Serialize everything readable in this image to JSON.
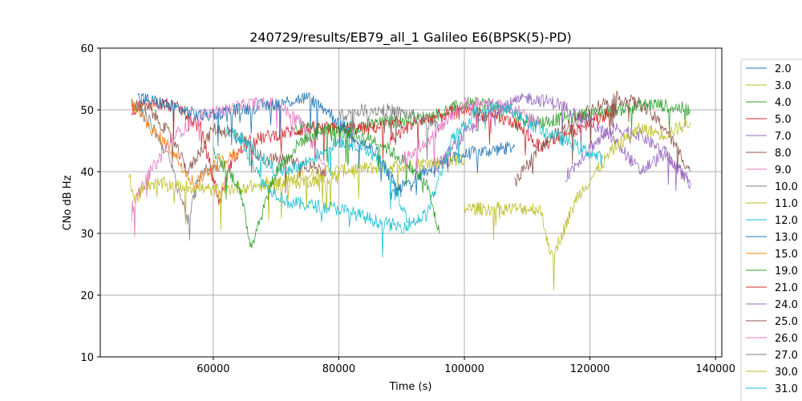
{
  "chart_data": {
    "type": "line",
    "title": "240729/results/EB79_all_1 Galileo E6(BPSK(5)-PD)",
    "xlabel": "Time (s)",
    "ylabel": "CNo dB Hz",
    "xlim": [
      42000,
      141000
    ],
    "ylim": [
      10,
      60
    ],
    "xticks": [
      60000,
      80000,
      100000,
      120000,
      140000
    ],
    "yticks": [
      10,
      20,
      30,
      40,
      50,
      60
    ],
    "grid": true,
    "legend_position": "right-outside",
    "series": [
      {
        "name": "2.0",
        "color": "#1f77b4",
        "x": [
          88000,
          95000,
          101000,
          108000
        ],
        "y": [
          36,
          41,
          43,
          44
        ]
      },
      {
        "name": "3.0",
        "color": "#bcbd22",
        "x": [
          68000,
          78000,
          90000,
          100000
        ],
        "y": [
          38,
          40,
          41,
          42
        ]
      },
      {
        "name": "4.0",
        "color": "#2ca02c",
        "x": [
          73000,
          80000,
          88000,
          95000,
          100000,
          104000,
          108000,
          112000,
          118000,
          124000,
          130000,
          136000
        ],
        "y": [
          47,
          47,
          48,
          49,
          51,
          51,
          49,
          48,
          49,
          50,
          51,
          50
        ]
      },
      {
        "name": "5.0",
        "color": "#d62728",
        "x": [
          47000,
          49000,
          52000,
          55000,
          58000,
          61000,
          63000,
          66000,
          70000,
          75000,
          80000,
          85000,
          90000
        ],
        "y": [
          50,
          51,
          51,
          50,
          47,
          35,
          42,
          45,
          46,
          47,
          47,
          47,
          48
        ]
      },
      {
        "name": "7.0",
        "color": "#9467bd",
        "x": [
          95000,
          100000,
          105000,
          110000,
          115000,
          120000,
          124000,
          128000,
          132000,
          136000
        ],
        "y": [
          40,
          46,
          50,
          52,
          51,
          48,
          45,
          40,
          43,
          38
        ]
      },
      {
        "name": "8.0",
        "color": "#8c564b",
        "x": [
          47000,
          50000,
          53000,
          56000,
          60000,
          64000,
          68000,
          72000,
          78000
        ],
        "y": [
          51,
          50,
          46,
          40,
          47,
          46,
          42,
          42,
          40
        ]
      },
      {
        "name": "9.0",
        "color": "#e377c2",
        "x": [
          47000,
          50000,
          54000,
          58000,
          62000,
          66000,
          70000,
          74000,
          78000
        ],
        "y": [
          34,
          40,
          46,
          49,
          50,
          51,
          51,
          48,
          40
        ]
      },
      {
        "name": "10.0",
        "color": "#7f7f7f",
        "x": [
          47000,
          50000,
          53000,
          56000,
          58000,
          61000
        ],
        "y": [
          51,
          48,
          42,
          32,
          40,
          41
        ]
      },
      {
        "name": "11.0",
        "color": "#bcbd22",
        "x": [
          46500,
          47500,
          49000,
          52000,
          60000,
          70000,
          80000
        ],
        "y": [
          40,
          35,
          38,
          38,
          37,
          38,
          39
        ]
      },
      {
        "name": "12.0",
        "color": "#17becf",
        "x": [
          62000,
          66000,
          70000,
          74000,
          80000,
          84000,
          88000,
          91000
        ],
        "y": [
          47,
          44,
          40,
          41,
          45,
          44,
          40,
          32
        ]
      },
      {
        "name": "13.0",
        "color": "#1f77b4",
        "x": [
          48000,
          52000,
          58000,
          64000,
          70000,
          75000,
          78000,
          82000,
          86000,
          90000
        ],
        "y": [
          52,
          51,
          49,
          50,
          51,
          52,
          50,
          46,
          43,
          36
        ]
      },
      {
        "name": "15.0",
        "color": "#ff7f0e",
        "x": [
          47000,
          50000,
          53000,
          57000,
          60000,
          64000
        ],
        "y": [
          51,
          47,
          44,
          38,
          41,
          43
        ]
      },
      {
        "name": "19.0",
        "color": "#2ca02c",
        "x": [
          60000,
          64000,
          66000,
          68000,
          70000,
          74000,
          78000,
          82000,
          86000,
          90000,
          94000,
          96000
        ],
        "y": [
          43,
          38,
          28,
          34,
          40,
          45,
          47,
          46,
          45,
          42,
          38,
          30
        ]
      },
      {
        "name": "21.0",
        "color": "#d62728",
        "x": [
          88000,
          92000,
          96000,
          100000,
          104000,
          108000,
          112000,
          116000,
          120000,
          124000
        ],
        "y": [
          45,
          48,
          49,
          50,
          49,
          48,
          44,
          46,
          48,
          50
        ]
      },
      {
        "name": "24.0",
        "color": "#9467bd",
        "x": [
          116000,
          120000,
          124000,
          128000,
          132000,
          136000
        ],
        "y": [
          39,
          44,
          47,
          46,
          43,
          38
        ]
      },
      {
        "name": "25.0",
        "color": "#8c564b",
        "x": [
          108000,
          112000,
          116000,
          120000,
          124000,
          128000,
          132000,
          136000
        ],
        "y": [
          38,
          44,
          47,
          50,
          52,
          51,
          47,
          40
        ]
      },
      {
        "name": "26.0",
        "color": "#e377c2",
        "x": [
          90000,
          94000,
          98000,
          100000,
          104000,
          108000,
          112000
        ],
        "y": [
          42,
          45,
          49,
          51,
          51,
          50,
          48
        ]
      },
      {
        "name": "27.0",
        "color": "#7f7f7f",
        "x": [
          80000,
          84000,
          88000,
          92000,
          96000
        ],
        "y": [
          49,
          50,
          50,
          49,
          47
        ]
      },
      {
        "name": "30.0",
        "color": "#bcbd22",
        "x": [
          100000,
          108000,
          112000,
          114000,
          118000,
          124000,
          128000,
          132000,
          136000
        ],
        "y": [
          34,
          34,
          34,
          26,
          36,
          44,
          47,
          46,
          48
        ]
      },
      {
        "name": "31.0",
        "color": "#17becf",
        "x": [
          64000,
          68000,
          72000,
          80000,
          86000,
          90000,
          94000,
          98000,
          102000,
          106000,
          110000,
          114000,
          118000,
          122000
        ],
        "y": [
          46,
          38,
          35,
          34,
          32,
          31,
          33,
          45,
          50,
          51,
          48,
          46,
          44,
          42
        ]
      }
    ]
  }
}
